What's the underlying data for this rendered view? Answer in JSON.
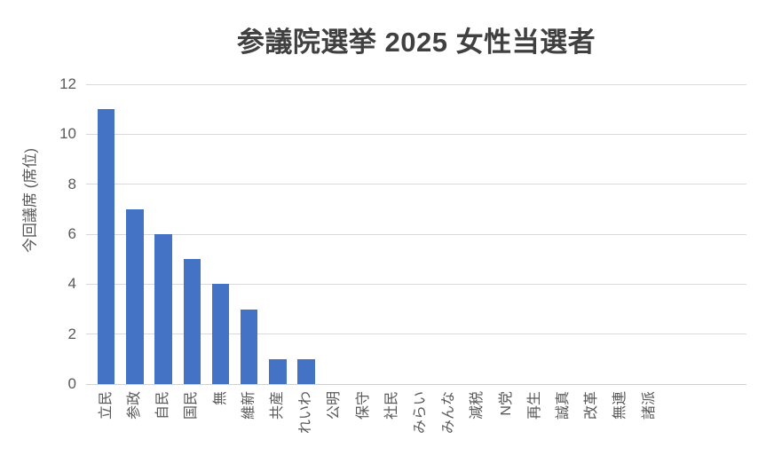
{
  "chart_data": {
    "type": "bar",
    "title": "参議院選挙 2025 女性当選者",
    "ylabel": "今回議席 (席位)",
    "xlabel": "",
    "categories": [
      "立民",
      "参政",
      "自民",
      "国民",
      "無",
      "維新",
      "共産",
      "れいわ",
      "公明",
      "保守",
      "社民",
      "みらい",
      "みんな",
      "減税",
      "N党",
      "再生",
      "誠真",
      "改革",
      "無連",
      "諸派"
    ],
    "values": [
      11,
      7,
      6,
      5,
      4,
      3,
      1,
      1,
      0,
      0,
      0,
      0,
      0,
      0,
      0,
      0,
      0,
      0,
      0,
      0
    ],
    "ylim": [
      0,
      12
    ],
    "yticks": [
      0,
      2,
      4,
      6,
      8,
      10,
      12
    ],
    "grid": true,
    "legend_position": "none",
    "bar_color": "#4472C4",
    "gridline_color": "#D9D9D9",
    "axis_line_color": "#D2D0D0",
    "tick_text_color": "#595959",
    "title_color": "#404040"
  }
}
